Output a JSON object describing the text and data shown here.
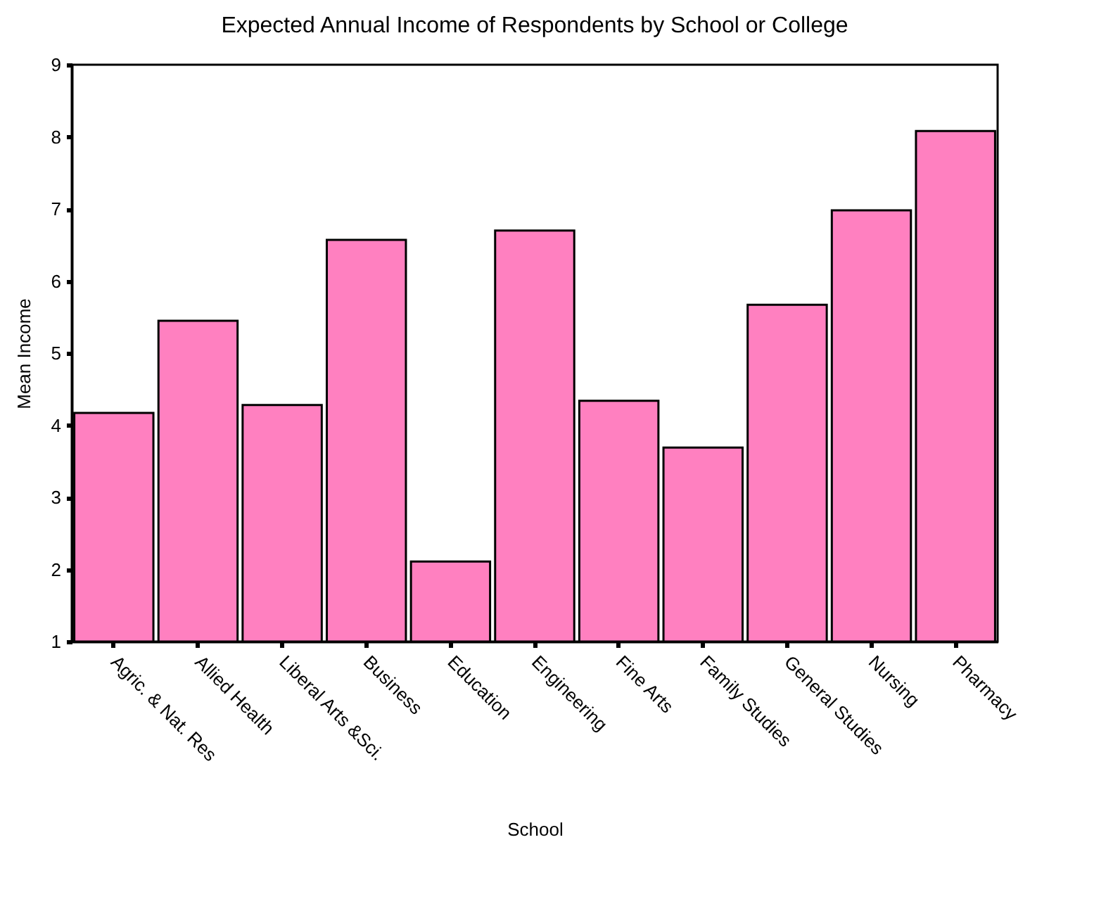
{
  "chart_data": {
    "type": "bar",
    "title": "Expected Annual Income of Respondents by School or College",
    "xlabel": "School",
    "ylabel": "Mean Income",
    "categories": [
      "Agric. & Nat. Res",
      "Allied Health",
      "Liberal Arts &Sci.",
      "Business",
      "Education",
      "Engineering",
      "Fine Arts",
      "Family Studies",
      "General Studies",
      "Nursing",
      "Pharmacy"
    ],
    "values": [
      4.17,
      5.45,
      4.28,
      6.57,
      2.11,
      6.7,
      4.34,
      3.69,
      5.67,
      6.98,
      8.08
    ],
    "color": "#ff80c0",
    "ylim": [
      1,
      9
    ],
    "yticks": [
      1,
      2,
      3,
      4,
      5,
      6,
      7,
      8,
      9
    ],
    "grid": false
  }
}
